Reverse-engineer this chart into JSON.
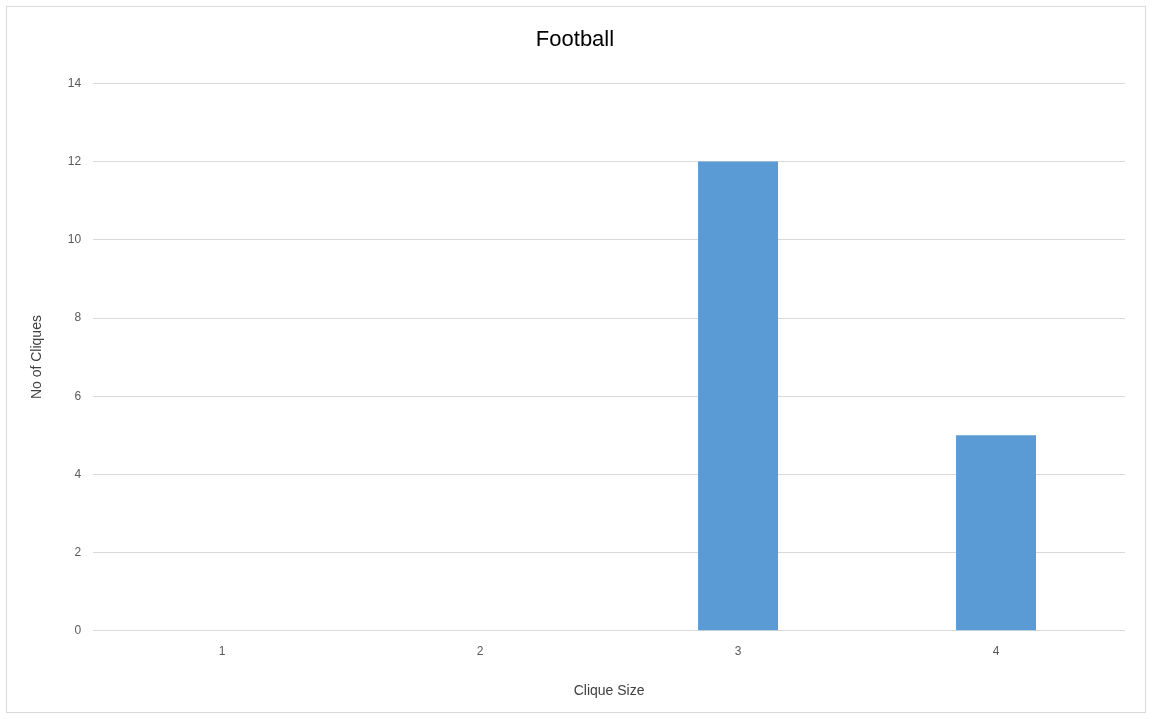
{
  "chart_data": {
    "type": "bar",
    "title": "Football",
    "xlabel": "Clique Size",
    "ylabel": "No of Cliques",
    "categories": [
      "1",
      "2",
      "3",
      "4"
    ],
    "values": [
      0,
      0,
      12,
      5
    ],
    "color": "#5b9bd5",
    "ylim": [
      0,
      14
    ],
    "yticks": [
      0,
      2,
      4,
      6,
      8,
      10,
      12,
      14
    ],
    "grid": "y",
    "legend": false
  }
}
